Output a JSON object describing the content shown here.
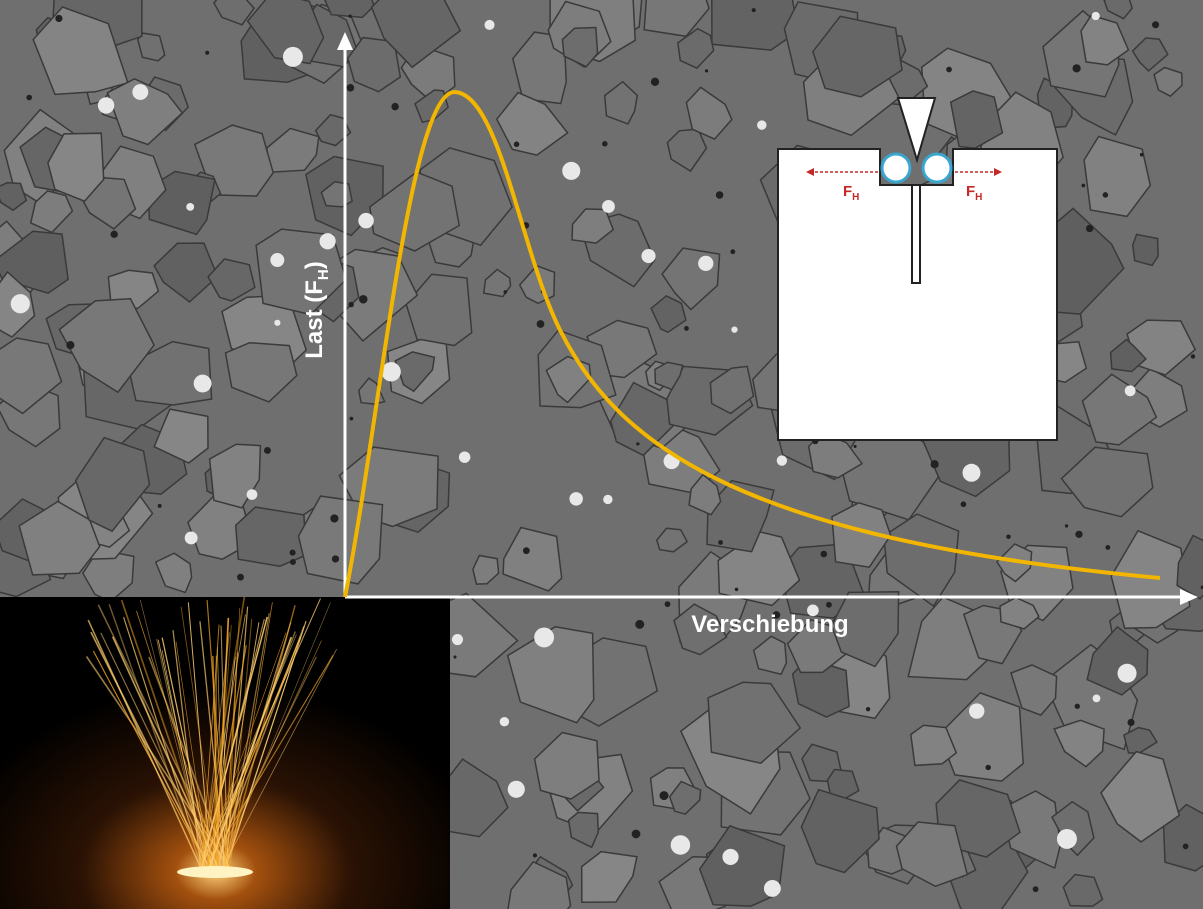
{
  "chart": {
    "y_label": {
      "text": "Last (F",
      "sub": "H",
      "close": ")"
    },
    "x_label": "Verschiebung"
  },
  "inset": {
    "force_left": {
      "text": "F",
      "sub": "H"
    },
    "force_right": {
      "text": "F",
      "sub": "H"
    }
  }
}
